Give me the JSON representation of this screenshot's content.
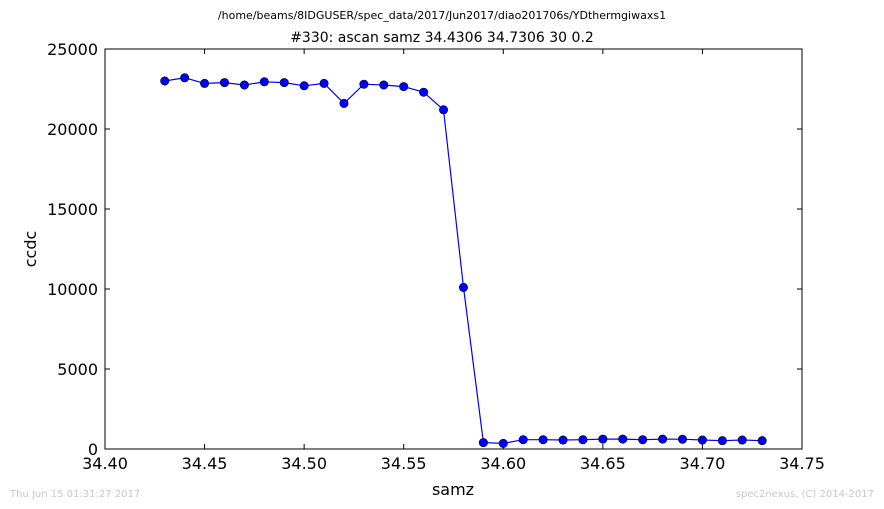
{
  "header": {
    "path": "/home/beams/8IDGUSER/spec_data/2017/Jun2017/diao201706s/YDthermgiwaxs1",
    "title": "#330: ascan  samz 34.4306 34.7306  30 0.2"
  },
  "footer": {
    "timestamp": "Thu Jun 15 01:31:27 2017",
    "credit": "spec2nexus, (C) 2014-2017"
  },
  "chart_data": {
    "type": "line",
    "title": "#330: ascan  samz 34.4306 34.7306  30 0.2",
    "xlabel": "samz",
    "ylabel": "ccdc",
    "xlim": [
      34.4,
      34.75
    ],
    "ylim": [
      0,
      25000
    ],
    "xticks": [
      "34.40",
      "34.45",
      "34.50",
      "34.55",
      "34.60",
      "34.65",
      "34.70",
      "34.75"
    ],
    "yticks": [
      "0",
      "5000",
      "10000",
      "15000",
      "20000",
      "25000"
    ],
    "grid": false,
    "line_color": "#0000ff",
    "marker_color": "#0000ff",
    "series": [
      {
        "x": [
          34.43,
          34.44,
          34.45,
          34.46,
          34.47,
          34.48,
          34.49,
          34.5,
          34.51,
          34.52,
          34.53,
          34.54,
          34.55,
          34.56,
          34.57,
          34.58,
          34.59,
          34.6,
          34.61,
          34.62,
          34.63,
          34.64,
          34.65,
          34.66,
          34.67,
          34.68,
          34.69,
          34.7,
          34.71,
          34.72,
          34.73
        ],
        "values": [
          23000,
          23200,
          22850,
          22900,
          22750,
          22950,
          22900,
          22700,
          22850,
          21600,
          22800,
          22750,
          22650,
          22300,
          21200,
          10100,
          400,
          350,
          580,
          580,
          560,
          580,
          620,
          620,
          580,
          620,
          610,
          560,
          520,
          560,
          520
        ]
      }
    ]
  }
}
